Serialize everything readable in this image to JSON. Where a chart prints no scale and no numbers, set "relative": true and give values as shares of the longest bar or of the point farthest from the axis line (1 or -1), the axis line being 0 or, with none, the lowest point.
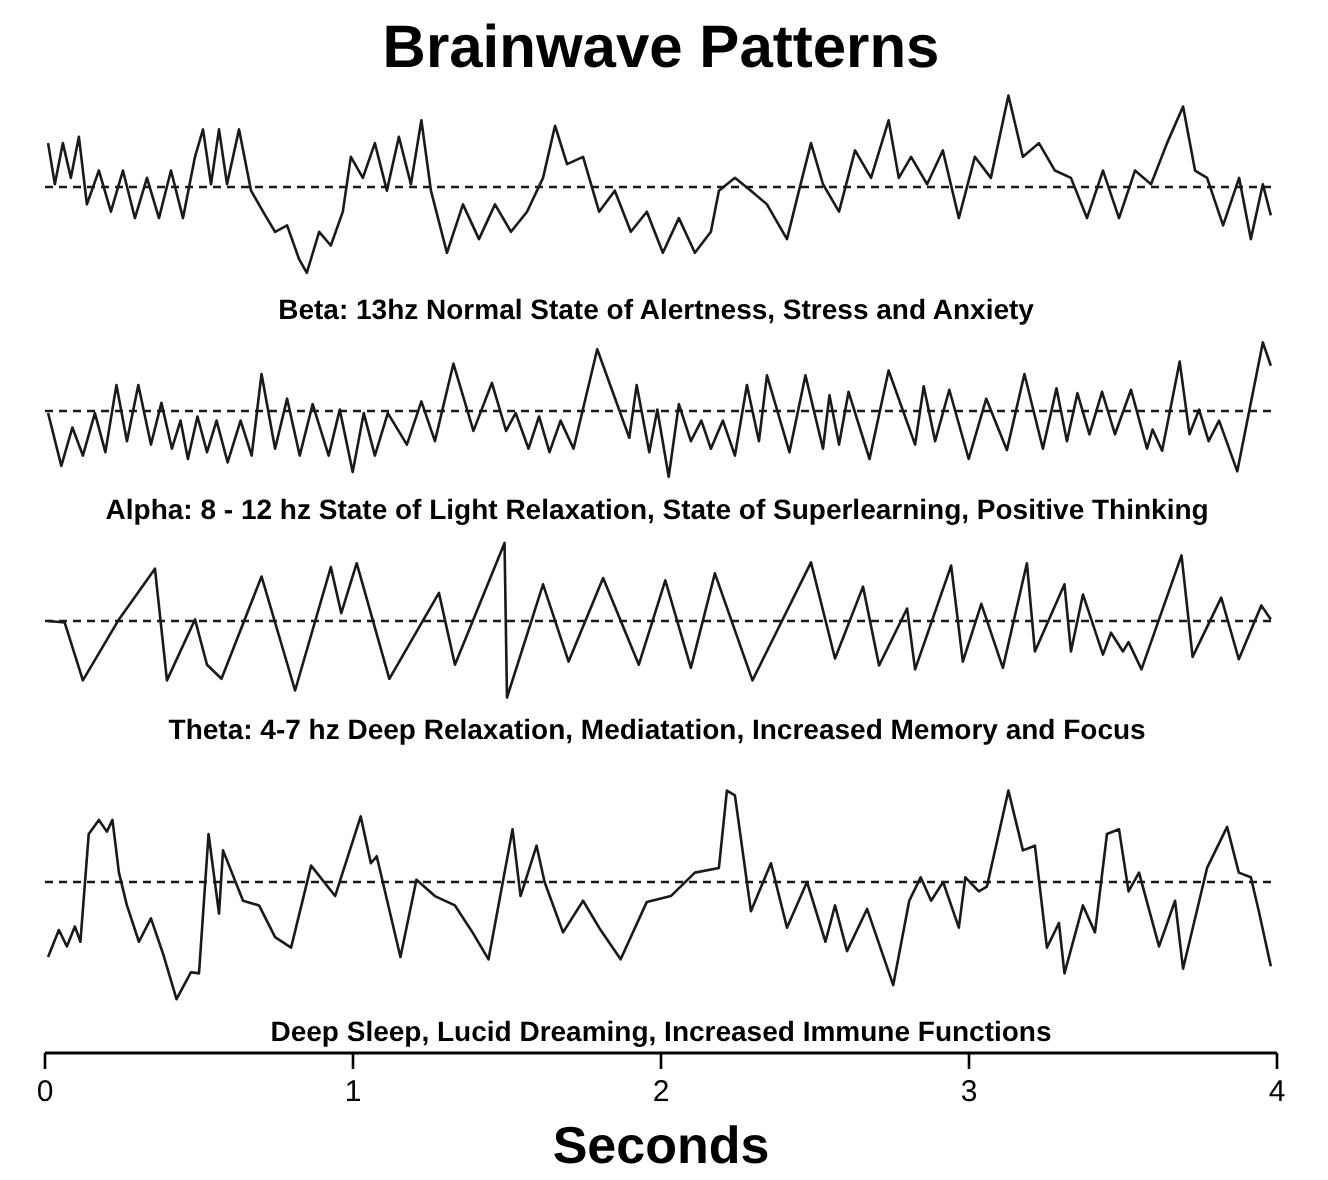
{
  "chart_data": [
    {
      "type": "line",
      "title": "Brainwave Patterns",
      "relative": true,
      "xlim": [
        0,
        4
      ],
      "tick_labels": false,
      "color": "#1a1a1a",
      "annotations": [
        "Beta: 13hz  Normal State of Alertness, Stress and Anxiety"
      ],
      "ref_lines": [
        {
          "axis": "y",
          "value": 0,
          "line_style": "dashed"
        }
      ],
      "x": [
        0.01,
        0.032,
        0.058,
        0.084,
        0.11,
        0.136,
        0.175,
        0.214,
        0.253,
        0.292,
        0.331,
        0.37,
        0.409,
        0.448,
        0.487,
        0.513,
        0.539,
        0.565,
        0.591,
        0.63,
        0.669,
        0.708,
        0.747,
        0.786,
        0.825,
        0.85,
        0.89,
        0.928,
        0.967,
        0.993,
        1.032,
        1.071,
        1.11,
        1.149,
        1.188,
        1.222,
        1.253,
        1.305,
        1.357,
        1.409,
        1.461,
        1.513,
        1.565,
        1.617,
        1.656,
        1.695,
        1.747,
        1.799,
        1.85,
        1.902,
        1.954,
        2.006,
        2.058,
        2.11,
        2.162,
        2.188,
        2.24,
        2.292,
        2.344,
        2.409,
        2.448,
        2.487,
        2.526,
        2.578,
        2.63,
        2.682,
        2.739,
        2.772,
        2.812,
        2.864,
        2.915,
        2.967,
        3.019,
        3.071,
        3.128,
        3.175,
        3.227,
        3.279,
        3.331,
        3.383,
        3.435,
        3.487,
        3.539,
        3.591,
        3.643,
        3.695,
        3.734,
        3.773,
        3.825,
        3.877,
        3.915,
        3.954,
        3.98
      ],
      "values": [
        0.48,
        0.03,
        0.48,
        0.1,
        0.55,
        -0.19,
        0.18,
        -0.27,
        0.18,
        -0.34,
        0.1,
        -0.34,
        0.18,
        -0.34,
        0.33,
        0.63,
        0.03,
        0.63,
        0.03,
        0.63,
        -0.04,
        -0.27,
        -0.49,
        -0.42,
        -0.79,
        -0.94,
        -0.49,
        -0.64,
        -0.27,
        0.33,
        0.1,
        0.48,
        -0.04,
        0.55,
        0.03,
        0.73,
        -0.04,
        -0.72,
        -0.19,
        -0.57,
        -0.19,
        -0.49,
        -0.27,
        0.1,
        0.67,
        0.25,
        0.33,
        -0.27,
        -0.04,
        -0.49,
        -0.27,
        -0.72,
        -0.34,
        -0.72,
        -0.49,
        -0.04,
        0.1,
        -0.04,
        -0.19,
        -0.57,
        -0.04,
        0.48,
        0.03,
        -0.27,
        0.4,
        0.1,
        0.73,
        0.1,
        0.33,
        0.03,
        0.4,
        -0.34,
        0.33,
        0.1,
        1.0,
        0.33,
        0.48,
        0.18,
        0.1,
        -0.34,
        0.18,
        -0.34,
        0.18,
        0.03,
        0.48,
        0.88,
        0.18,
        0.1,
        -0.42,
        0.1,
        -0.57,
        0.03,
        -0.31
      ]
    },
    {
      "type": "line",
      "relative": true,
      "xlim": [
        0,
        4
      ],
      "tick_labels": false,
      "color": "#1a1a1a",
      "annotations": [
        "Alpha: 8 - 12 hz  State of Light Relaxation, State of Superlearning, Positive Thinking"
      ],
      "ref_lines": [
        {
          "axis": "y",
          "value": 0,
          "line_style": "dashed"
        }
      ],
      "x": [
        0.01,
        0.053,
        0.089,
        0.123,
        0.162,
        0.196,
        0.232,
        0.266,
        0.303,
        0.344,
        0.378,
        0.412,
        0.44,
        0.464,
        0.495,
        0.526,
        0.557,
        0.593,
        0.635,
        0.671,
        0.703,
        0.747,
        0.786,
        0.827,
        0.869,
        0.921,
        0.957,
        0.999,
        1.035,
        1.071,
        1.113,
        1.175,
        1.222,
        1.266,
        1.326,
        1.391,
        1.451,
        1.497,
        1.528,
        1.57,
        1.604,
        1.638,
        1.674,
        1.716,
        1.793,
        1.897,
        1.921,
        1.962,
        1.988,
        2.025,
        2.058,
        2.097,
        2.131,
        2.162,
        2.201,
        2.24,
        2.279,
        2.318,
        2.344,
        2.417,
        2.469,
        2.526,
        2.547,
        2.578,
        2.609,
        2.677,
        2.739,
        2.825,
        2.853,
        2.89,
        2.936,
        2.999,
        3.056,
        3.123,
        3.18,
        3.24,
        3.284,
        3.318,
        3.352,
        3.391,
        3.432,
        3.474,
        3.526,
        3.578,
        3.596,
        3.627,
        3.684,
        3.716,
        3.747,
        3.778,
        3.812,
        3.871,
        3.954,
        3.98
      ],
      "values": [
        -0.03,
        -0.8,
        -0.24,
        -0.65,
        -0.03,
        -0.6,
        0.38,
        -0.44,
        0.38,
        -0.49,
        0.12,
        -0.55,
        -0.14,
        -0.7,
        -0.08,
        -0.6,
        -0.14,
        -0.75,
        -0.14,
        -0.65,
        0.54,
        -0.55,
        0.18,
        -0.65,
        0.1,
        -0.65,
        0.02,
        -0.89,
        -0.03,
        -0.65,
        -0.03,
        -0.49,
        0.14,
        -0.44,
        0.69,
        -0.29,
        0.41,
        -0.29,
        -0.03,
        -0.55,
        -0.08,
        -0.6,
        -0.14,
        -0.55,
        0.9,
        -0.39,
        0.38,
        -0.6,
        0.02,
        -0.96,
        0.1,
        -0.44,
        -0.14,
        -0.55,
        -0.14,
        -0.65,
        0.38,
        -0.44,
        0.52,
        -0.6,
        0.52,
        -0.55,
        0.23,
        -0.49,
        0.28,
        -0.7,
        0.59,
        -0.49,
        0.36,
        -0.44,
        0.31,
        -0.7,
        0.18,
        -0.57,
        0.54,
        -0.55,
        0.33,
        -0.44,
        0.26,
        -0.34,
        0.28,
        -0.34,
        0.31,
        -0.55,
        -0.27,
        -0.58,
        0.72,
        -0.34,
        0.02,
        -0.44,
        -0.14,
        -0.88,
        1.0,
        0.66
      ]
    },
    {
      "type": "line",
      "relative": true,
      "xlim": [
        0,
        4
      ],
      "tick_labels": false,
      "color": "#1a1a1a",
      "annotations": [
        "Theta: 4-7 hz  Deep Relaxation, Mediatation, Increased Memory and Focus"
      ],
      "ref_lines": [
        {
          "axis": "y",
          "value": 0,
          "line_style": "dashed"
        }
      ],
      "x": [
        0.01,
        0.064,
        0.123,
        0.24,
        0.357,
        0.396,
        0.487,
        0.526,
        0.573,
        0.703,
        0.812,
        0.928,
        0.962,
        1.012,
        1.118,
        1.279,
        1.331,
        1.492,
        1.5,
        1.617,
        1.7,
        1.812,
        1.928,
        2.014,
        2.097,
        2.175,
        2.297,
        2.487,
        2.565,
        2.656,
        2.708,
        2.799,
        2.825,
        2.942,
        2.98,
        3.04,
        3.11,
        3.188,
        3.214,
        3.31,
        3.331,
        3.37,
        3.435,
        3.461,
        3.5,
        3.518,
        3.56,
        3.69,
        3.726,
        3.819,
        3.876,
        3.949,
        3.98
      ],
      "values": [
        0.0,
        -0.02,
        -0.76,
        0.02,
        0.67,
        -0.76,
        0.02,
        -0.56,
        -0.74,
        0.57,
        -0.89,
        0.69,
        0.1,
        0.74,
        -0.74,
        0.36,
        -0.56,
        1.0,
        -0.98,
        0.47,
        -0.52,
        0.55,
        -0.56,
        0.52,
        -0.6,
        0.61,
        -0.76,
        0.75,
        -0.48,
        0.44,
        -0.57,
        0.16,
        -0.62,
        0.71,
        -0.52,
        0.22,
        -0.6,
        0.74,
        -0.39,
        0.47,
        -0.39,
        0.34,
        -0.43,
        -0.15,
        -0.39,
        -0.27,
        -0.62,
        0.84,
        -0.46,
        0.3,
        -0.49,
        0.2,
        0.02
      ]
    },
    {
      "type": "line",
      "relative": true,
      "xlim": [
        0,
        4
      ],
      "xticks": [
        0,
        1,
        2,
        3,
        4
      ],
      "tick_labels": "x",
      "xlabel": "Seconds",
      "color": "#1a1a1a",
      "annotations": [
        "Deep Sleep, Lucid Dreaming, Increased Immune Functions"
      ],
      "ref_lines": [
        {
          "axis": "y",
          "value": 0,
          "line_style": "dashed"
        }
      ],
      "x": [
        0.01,
        0.045,
        0.071,
        0.097,
        0.115,
        0.142,
        0.175,
        0.201,
        0.219,
        0.24,
        0.266,
        0.305,
        0.344,
        0.383,
        0.427,
        0.474,
        0.5,
        0.531,
        0.565,
        0.578,
        0.643,
        0.695,
        0.747,
        0.799,
        0.864,
        0.942,
        1.025,
        1.058,
        1.077,
        1.154,
        1.206,
        1.266,
        1.331,
        1.388,
        1.44,
        1.518,
        1.544,
        1.596,
        1.622,
        1.682,
        1.747,
        1.799,
        1.869,
        1.954,
        2.032,
        2.11,
        2.188,
        2.214,
        2.24,
        2.292,
        2.357,
        2.409,
        2.474,
        2.534,
        2.565,
        2.604,
        2.669,
        2.754,
        2.806,
        2.843,
        2.877,
        2.916,
        2.967,
        2.988,
        3.032,
        3.058,
        3.128,
        3.175,
        3.214,
        3.253,
        3.292,
        3.31,
        3.37,
        3.409,
        3.448,
        3.487,
        3.518,
        3.552,
        3.617,
        3.669,
        3.695,
        3.773,
        3.838,
        3.876,
        3.915,
        3.941,
        3.98
      ],
      "values": [
        -0.64,
        -0.41,
        -0.55,
        -0.38,
        -0.51,
        0.41,
        0.53,
        0.43,
        0.53,
        0.08,
        -0.2,
        -0.51,
        -0.31,
        -0.61,
        -1.0,
        -0.77,
        -0.78,
        0.41,
        -0.27,
        0.27,
        -0.16,
        -0.2,
        -0.47,
        -0.56,
        0.14,
        -0.12,
        0.56,
        0.16,
        0.22,
        -0.64,
        0.02,
        -0.12,
        -0.2,
        -0.43,
        -0.66,
        0.45,
        -0.12,
        0.31,
        0.0,
        -0.43,
        -0.16,
        -0.39,
        -0.66,
        -0.17,
        -0.12,
        0.08,
        0.12,
        0.78,
        0.74,
        -0.25,
        0.16,
        -0.39,
        0.0,
        -0.51,
        -0.2,
        -0.59,
        -0.23,
        -0.88,
        -0.16,
        0.04,
        -0.16,
        0.0,
        -0.39,
        0.04,
        -0.08,
        -0.04,
        0.78,
        0.27,
        0.31,
        -0.56,
        -0.35,
        -0.78,
        -0.2,
        -0.43,
        0.41,
        0.45,
        -0.08,
        0.08,
        -0.55,
        -0.16,
        -0.74,
        0.12,
        0.47,
        0.08,
        0.04,
        -0.25,
        -0.72
      ]
    }
  ]
}
